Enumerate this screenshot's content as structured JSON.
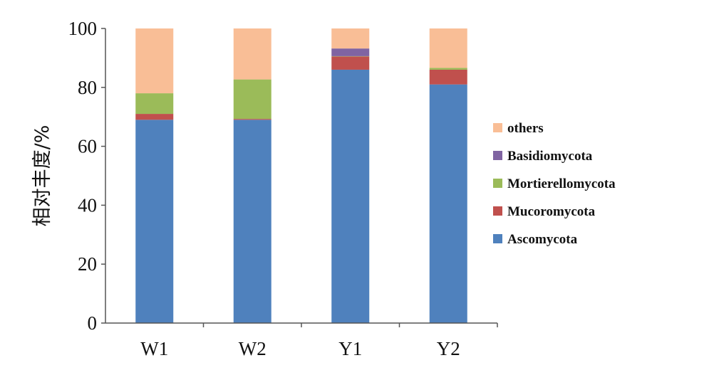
{
  "chart_data": {
    "type": "stacked-bar",
    "ylabel": "相对丰度/%",
    "xlabel": "",
    "ylim": [
      0,
      100
    ],
    "yticks": [
      0,
      20,
      40,
      60,
      80,
      100
    ],
    "grid": false,
    "legend_position": "right",
    "categories": [
      "W1",
      "W2",
      "Y1",
      "Y2"
    ],
    "series": [
      {
        "name": "Ascomycota",
        "color": "#4F81BD",
        "values": [
          69,
          69,
          86,
          81
        ]
      },
      {
        "name": "Mucoromycota",
        "color": "#C0504D",
        "values": [
          2,
          0.3,
          4.5,
          5
        ]
      },
      {
        "name": "Mortierellomycota",
        "color": "#9BBB59",
        "values": [
          7,
          13.4,
          0.1,
          0.6
        ]
      },
      {
        "name": "Basidiomycota",
        "color": "#8064A2",
        "values": [
          0,
          0,
          2.6,
          0
        ]
      },
      {
        "name": "others",
        "color": "#F9BE96",
        "values": [
          22,
          17.3,
          6.8,
          13.4
        ]
      }
    ]
  }
}
